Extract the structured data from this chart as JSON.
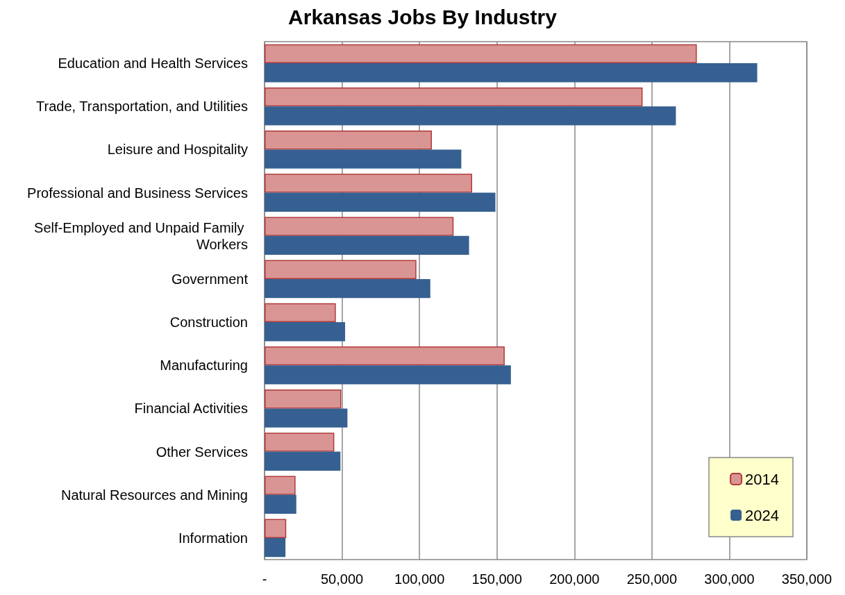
{
  "chart_data": {
    "type": "bar",
    "orientation": "horizontal",
    "title": "Arkansas Jobs By Industry",
    "categories": [
      "Education and Health Services",
      "Trade, Transportation, and Utilities",
      "Leisure and Hospitality",
      "Professional and Business Services",
      "Self-Employed and Unpaid Family Workers",
      "Government",
      "Construction",
      "Manufacturing",
      "Financial Activities",
      "Other Services",
      "Natural Resources and Mining",
      "Information"
    ],
    "series": [
      {
        "name": "2014",
        "color": "#d99594",
        "values": [
          279000,
          244000,
          108000,
          134000,
          122000,
          98000,
          46000,
          155000,
          49500,
          45000,
          20000,
          14000
        ]
      },
      {
        "name": "2024",
        "color": "#366092",
        "values": [
          318000,
          265500,
          127000,
          149000,
          132000,
          107000,
          52000,
          159000,
          53500,
          49000,
          20500,
          13500
        ]
      }
    ],
    "xlim": [
      0,
      350000
    ],
    "xticks": [
      {
        "value": 0,
        "label": "-"
      },
      {
        "value": 50000,
        "label": "50,000"
      },
      {
        "value": 100000,
        "label": "100,000"
      },
      {
        "value": 150000,
        "label": "150,000"
      },
      {
        "value": 200000,
        "label": "200,000"
      },
      {
        "value": 250000,
        "label": "250,000"
      },
      {
        "value": 300000,
        "label": "300,000"
      },
      {
        "value": 350000,
        "label": "350,000"
      }
    ],
    "grid": "x",
    "legend": "bottom right"
  }
}
